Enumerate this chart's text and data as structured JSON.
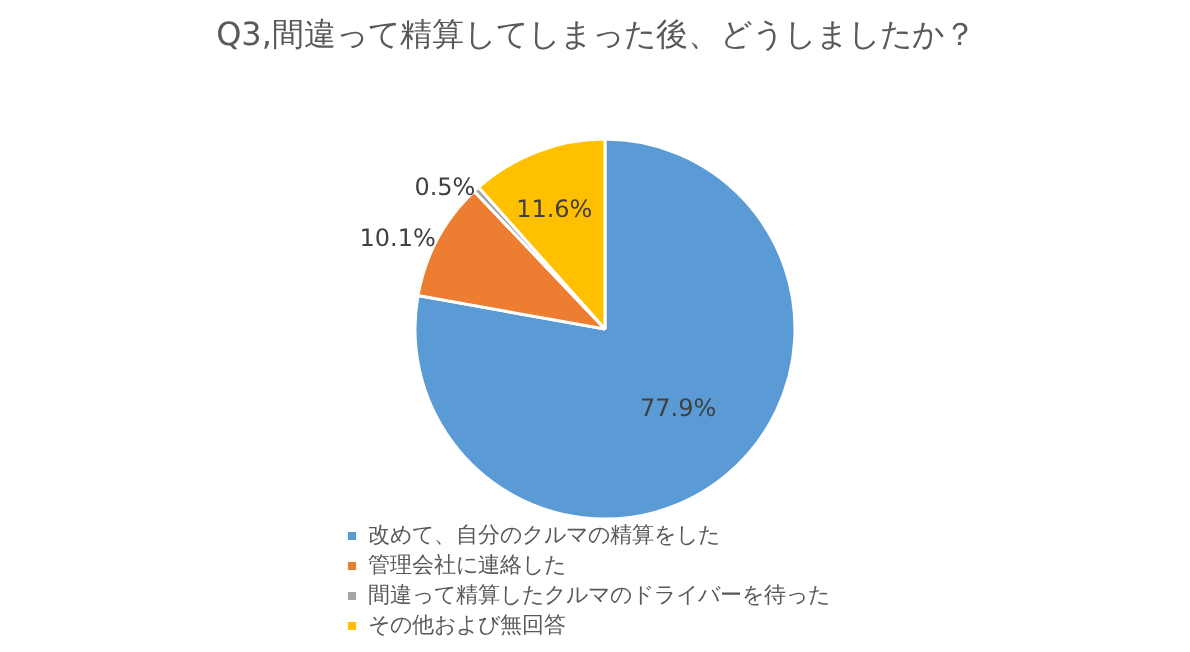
{
  "chart_data": {
    "type": "pie",
    "title": "Q3,間違って精算してしまった後、どうしましたか？",
    "categories": [
      "改めて、自分のクルマの精算をした",
      "管理会社に連絡した",
      "間違って精算したクルマのドライバーを待った",
      "その他および無回答"
    ],
    "values": [
      77.9,
      10.1,
      0.5,
      11.6
    ],
    "colors": [
      "#5b9bd5",
      "#ed7d31",
      "#a5a5a5",
      "#ffc000"
    ],
    "value_labels": [
      "77.9%",
      "10.1%",
      "0.5%",
      "11.6%"
    ],
    "legend": "bottom"
  }
}
